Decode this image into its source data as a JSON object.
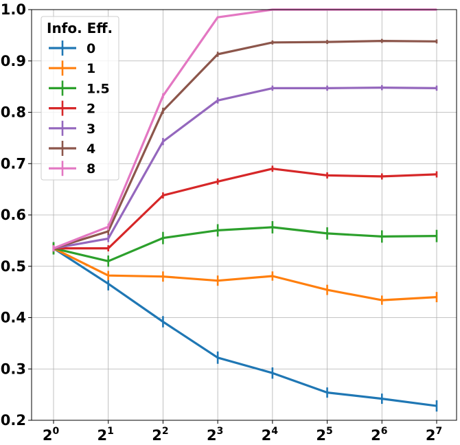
{
  "chart_data": {
    "type": "line",
    "x": [
      1,
      2,
      4,
      8,
      16,
      32,
      64,
      128
    ],
    "x_tick_labels": [
      {
        "base": "2",
        "exp": "0"
      },
      {
        "base": "2",
        "exp": "1"
      },
      {
        "base": "2",
        "exp": "2"
      },
      {
        "base": "2",
        "exp": "3"
      },
      {
        "base": "2",
        "exp": "4"
      },
      {
        "base": "2",
        "exp": "5"
      },
      {
        "base": "2",
        "exp": "6"
      },
      {
        "base": "2",
        "exp": "7"
      }
    ],
    "x_scale": "log2",
    "y_ticks": [
      "0.2",
      "0.3",
      "0.4",
      "0.5",
      "0.6",
      "0.7",
      "0.8",
      "0.9",
      "1.0"
    ],
    "ylim": [
      0.2,
      1.0
    ],
    "grid": true,
    "legend": {
      "title": "Info. Eff.",
      "placement": "top-left"
    },
    "series": [
      {
        "name": "0",
        "color": "#1f77b4",
        "values": [
          0.535,
          0.466,
          0.392,
          0.322,
          0.292,
          0.254,
          0.242,
          0.228
        ],
        "errors": [
          0.012,
          0.013,
          0.011,
          0.012,
          0.011,
          0.01,
          0.01,
          0.011
        ]
      },
      {
        "name": "1",
        "color": "#ff7f0e",
        "values": [
          0.535,
          0.482,
          0.48,
          0.472,
          0.481,
          0.454,
          0.434,
          0.44
        ],
        "errors": [
          0.01,
          0.009,
          0.01,
          0.01,
          0.009,
          0.01,
          0.009,
          0.01
        ]
      },
      {
        "name": "1.5",
        "color": "#2ca02c",
        "values": [
          0.535,
          0.51,
          0.555,
          0.57,
          0.576,
          0.564,
          0.558,
          0.559
        ],
        "errors": [
          0.012,
          0.011,
          0.012,
          0.012,
          0.012,
          0.012,
          0.012,
          0.012
        ]
      },
      {
        "name": "2",
        "color": "#d62728",
        "values": [
          0.535,
          0.535,
          0.638,
          0.665,
          0.69,
          0.677,
          0.675,
          0.679
        ],
        "errors": [
          0.006,
          0.006,
          0.006,
          0.006,
          0.006,
          0.006,
          0.006,
          0.006
        ]
      },
      {
        "name": "3",
        "color": "#9467bd",
        "values": [
          0.535,
          0.554,
          0.743,
          0.823,
          0.847,
          0.847,
          0.848,
          0.847
        ],
        "errors": [
          0.006,
          0.007,
          0.007,
          0.006,
          0.005,
          0.005,
          0.005,
          0.005
        ]
      },
      {
        "name": "4",
        "color": "#8c564b",
        "values": [
          0.535,
          0.568,
          0.803,
          0.913,
          0.936,
          0.937,
          0.939,
          0.938
        ],
        "errors": [
          0.006,
          0.007,
          0.006,
          0.005,
          0.004,
          0.004,
          0.004,
          0.004
        ]
      },
      {
        "name": "8",
        "color": "#e377c2",
        "values": [
          0.535,
          0.577,
          0.832,
          0.985,
          1.0,
          1.0,
          1.0,
          1.0
        ],
        "errors": [
          0.006,
          0.006,
          0.005,
          0.002,
          0.001,
          0.001,
          0.001,
          0.001
        ]
      }
    ]
  }
}
